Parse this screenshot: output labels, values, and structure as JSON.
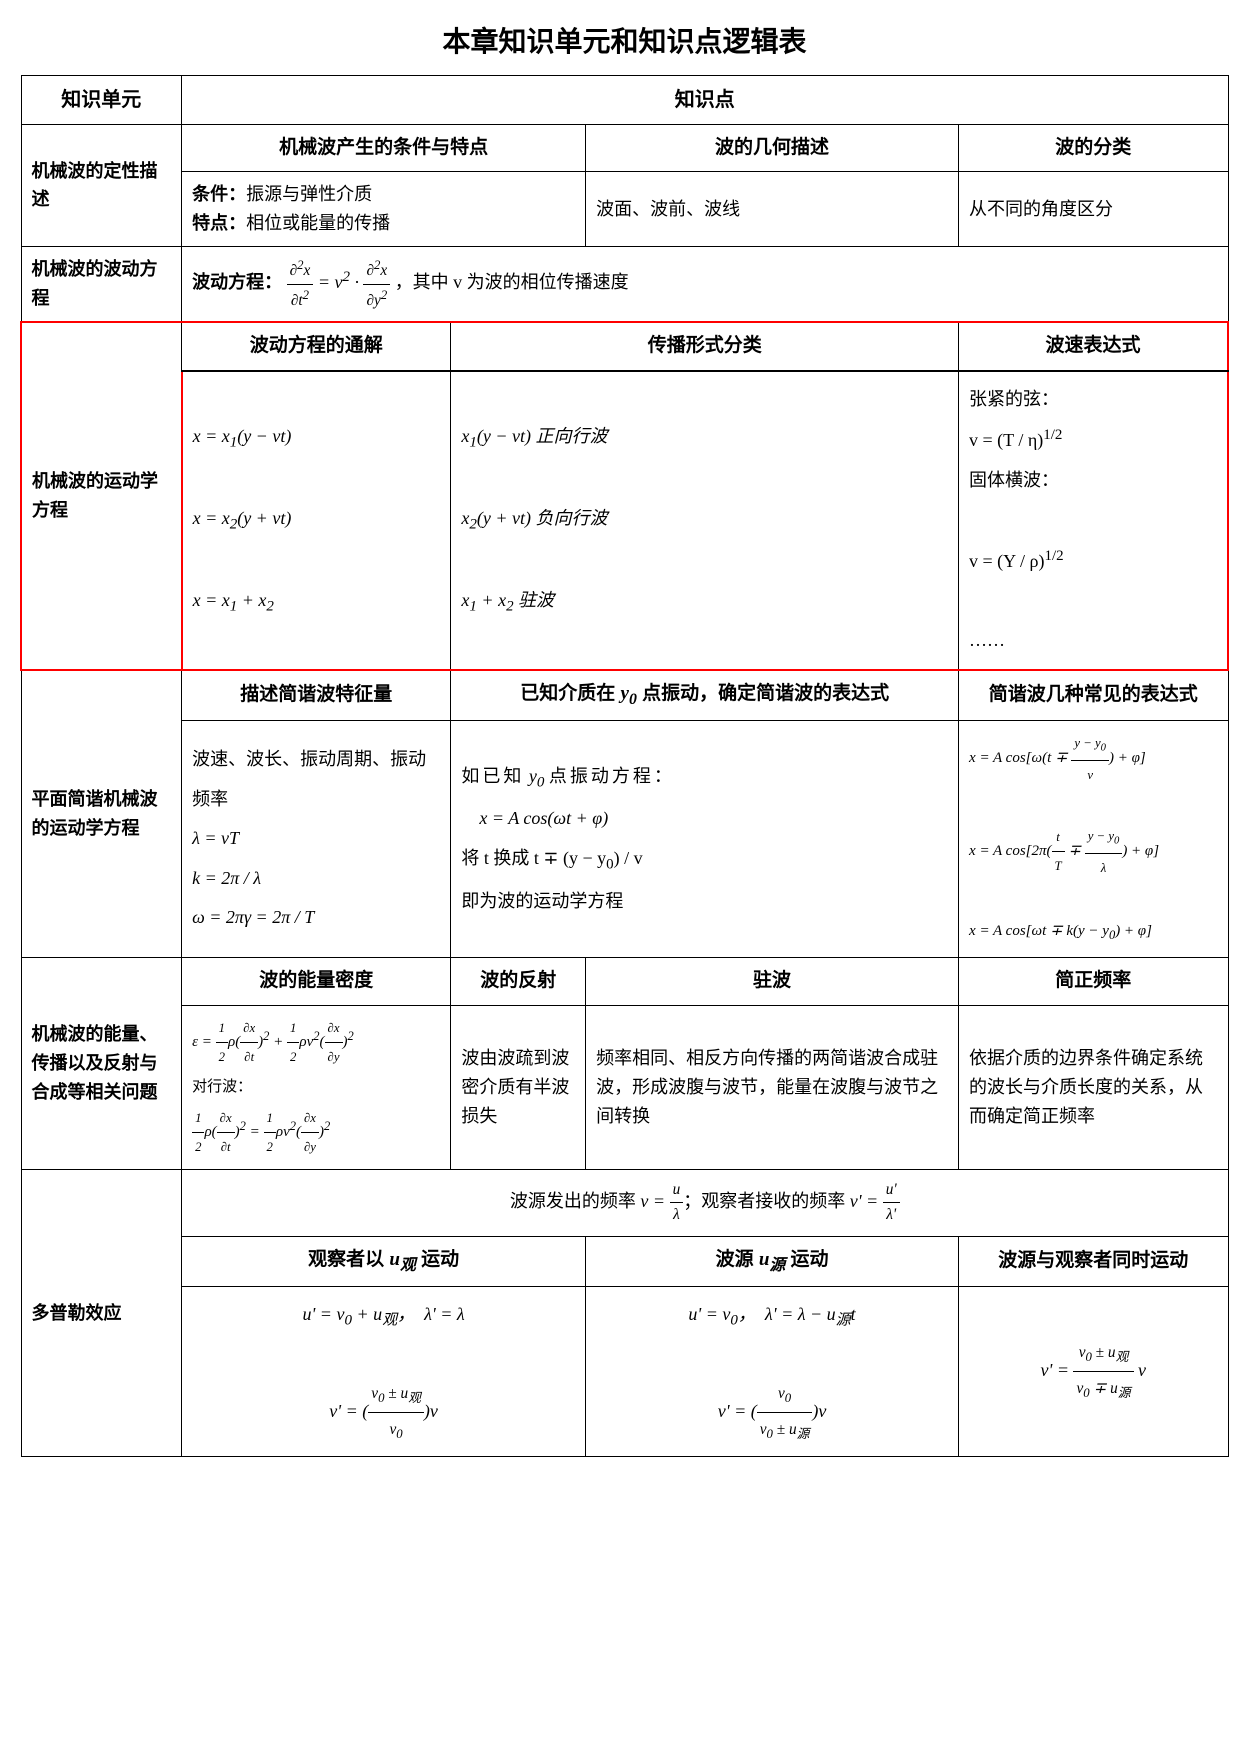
{
  "page_title": "本章知识单元和知识点逻辑表",
  "headers": {
    "unit": "知识单元",
    "point": "知识点"
  },
  "row1": {
    "unit": "机械波的定性描述",
    "h1": "机械波产生的条件与特点",
    "h2": "波的几何描述",
    "h3": "波的分类",
    "cond_label": "条件：",
    "cond_text": "振源与弹性介质",
    "feat_label": "特点：",
    "feat_text": "相位或能量的传播",
    "c2": "波面、波前、波线",
    "c3": "从不同的角度区分"
  },
  "row2": {
    "unit": "机械波的波动方程",
    "label": "波动方程：",
    "eq_html": "<span class='frac'><span class='num'>∂<sup>2</sup>x</span><span class='den'>∂t<sup>2</sup></span></span> = v<sup>2</sup> · <span class='frac'><span class='num'>∂<sup>2</sup>x</span><span class='den'>∂y<sup>2</sup></span></span>",
    "suffix": "，其中 v 为波的相位传播速度"
  },
  "row3": {
    "unit": "机械波的运动学方程",
    "h1": "波动方程的通解",
    "h2": "传播形式分类",
    "h3": "波速表达式",
    "c1_html": "x = x<sub>1</sub>(y − vt)<br><br>x = x<sub>2</sub>(y + vt)<br><br>x = x<sub>1</sub> + x<sub>2</sub>",
    "c2_html": "x<sub>1</sub>(y − vt) 正向行波<br><br>x<sub>2</sub>(y + vt) 负向行波<br><br>x<sub>1</sub> + x<sub>2</sub> 驻波",
    "c3_html": "张紧的弦：<br>v = (T / η)<sup>1/2</sup><br>固体横波：<br><br>v = (Y / ρ)<sup>1/2</sup><br><br>……"
  },
  "row4": {
    "unit": "平面简谐机械波的运动学方程",
    "h1": "描述简谐波特征量",
    "h2_html": "已知介质在 <span class='eq'>y<sub>0</sub></span> 点振动，确定简谐波的表达式",
    "h3": "简谐波几种常见的表达式",
    "c1_intro": "波速、波长、振动周期、振动频率",
    "c1_eq_html": "λ = vT<br>k = 2π / λ<br>ω = 2πγ = 2π / T",
    "c2_pre": "如已知",
    "c2_mid": "点振动方程：",
    "c2_eq1": "x = A cos(ωt + φ)",
    "c2_line2_pre": "将 t 换成 t ∓ (y − y",
    "c2_line2_suf": ") / v",
    "c2_line3": "即为波的运动学方程",
    "c3_eq1_html": "x = A cos[ω(t ∓ <span class='frac'><span class='num'>y − y<sub>0</sub></span><span class='den'>v</span></span>) + φ]",
    "c3_eq2_html": "x = A cos[2π(<span class='frac'><span class='num'>t</span><span class='den'>T</span></span> ∓ <span class='frac'><span class='num'>y − y<sub>0</sub></span><span class='den'>λ</span></span>) + φ]",
    "c3_eq3_html": "x = A cos[ωt ∓ k(y − y<sub>0</sub>) + φ]"
  },
  "row5": {
    "unit": "机械波的能量、传播以及反射与合成等相关问题",
    "h1": "波的能量密度",
    "h2": "波的反射",
    "h3": "驻波",
    "h4": "简正频率",
    "c1_eq1_html": "ε = <span class='frac'><span class='num'>1</span><span class='den'>2</span></span>ρ(<span class='frac'><span class='num'>∂x</span><span class='den'>∂t</span></span>)<sup>2</sup> + <span class='frac'><span class='num'>1</span><span class='den'>2</span></span>ρv<sup>2</sup>(<span class='frac'><span class='num'>∂x</span><span class='den'>∂y</span></span>)<sup>2</sup>",
    "c1_mid": "对行波：",
    "c1_eq2_html": "<span class='frac'><span class='num'>1</span><span class='den'>2</span></span>ρ(<span class='frac'><span class='num'>∂x</span><span class='den'>∂t</span></span>)<sup>2</sup> = <span class='frac'><span class='num'>1</span><span class='den'>2</span></span>ρv<sup>2</sup>(<span class='frac'><span class='num'>∂x</span><span class='den'>∂y</span></span>)<sup>2</sup>",
    "c2": "波由波疏到波密介质有半波损失",
    "c3": "频率相同、相反方向传播的两简谐波合成驻波，形成波腹与波节，能量在波腹与波节之间转换",
    "c4": "依据介质的边界条件确定系统的波长与介质长度的关系，从而确定简正频率"
  },
  "row6": {
    "unit": "多普勒效应",
    "top_html": "波源发出的频率 <span class='eq'>ν = <span class='frac'><span class='num'>u</span><span class='den'>λ</span></span></span>；观察者接收的频率 <span class='eq'>ν' = <span class='frac'><span class='num'>u'</span><span class='den'>λ'</span></span></span>",
    "h1_html": "观察者以 <span class='eq'>u<sub>观</sub></span> 运动",
    "h2_html": "波源 <span class='eq'>u<sub>源</sub></span> 运动",
    "h3": "波源与观察者同时运动",
    "c1_html": "u' = v<sub>0</sub> + u<sub>观</sub>， &nbsp;λ' = λ<br><br>ν' = (<span class='frac'><span class='num'>v<sub>0</sub> ± u<sub>观</sub></span><span class='den'>v<sub>0</sub></span></span>)ν",
    "c2_html": "u' = v<sub>0</sub>， &nbsp;λ' = λ − u<sub>源</sub>t<br><br>ν' = (<span class='frac'><span class='num'>v<sub>0</sub></span><span class='den'>v<sub>0</sub> ± u<sub>源</sub></span></span>)ν",
    "c3_html": "ν' = <span class='frac'><span class='num'>v<sub>0</sub> ± u<sub>观</sub></span><span class='den'>v<sub>0</sub> ∓ u<sub>源</sub></span></span> ν"
  }
}
